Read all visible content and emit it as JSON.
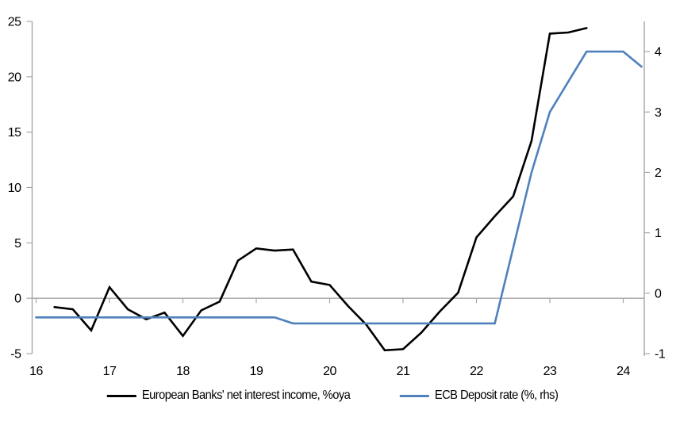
{
  "chart_data": {
    "type": "line",
    "title": "",
    "x_axis": {
      "ticks": [
        16,
        17,
        18,
        19,
        20,
        21,
        22,
        23,
        24
      ],
      "min": 16,
      "max": 24.3
    },
    "left_axis": {
      "label": "",
      "min": -5,
      "max": 25,
      "step": 5,
      "ticks": [
        25,
        20,
        15,
        10,
        5,
        0,
        -5
      ]
    },
    "right_axis": {
      "label": "",
      "min": -1,
      "max": 4.5,
      "step": 1,
      "ticks": [
        4,
        3,
        2,
        1,
        0,
        -1
      ]
    },
    "grid": "zero-line-only",
    "legend_position": "bottom",
    "series": [
      {
        "name": "European Banks' net interest income, %oya",
        "color": "#000000",
        "axis": "left",
        "x": [
          16.25,
          16.5,
          16.75,
          17,
          17.25,
          17.5,
          17.75,
          18,
          18.25,
          18.5,
          18.75,
          19,
          19.25,
          19.5,
          19.75,
          20,
          20.25,
          20.5,
          20.75,
          21,
          21.25,
          21.5,
          21.75,
          22,
          22.25,
          22.5,
          22.75,
          23,
          23.25,
          23.5
        ],
        "values": [
          -0.8,
          -1.0,
          -2.9,
          1.0,
          -1.0,
          -1.9,
          -1.3,
          -3.4,
          -1.1,
          -0.3,
          3.4,
          4.5,
          4.3,
          4.4,
          1.5,
          1.2,
          -0.7,
          -2.4,
          -4.7,
          -4.6,
          -3.1,
          -1.2,
          0.5,
          5.5,
          7.4,
          9.2,
          14.2,
          23.9,
          24.0,
          24.4
        ]
      },
      {
        "name": "ECB Deposit rate (%, rhs)",
        "color": "#4f81bd",
        "axis": "right",
        "x": [
          16,
          16.25,
          16.5,
          16.75,
          17,
          17.25,
          17.5,
          17.75,
          18,
          18.25,
          18.5,
          18.75,
          19,
          19.25,
          19.5,
          19.75,
          20,
          20.25,
          20.5,
          20.75,
          21,
          21.25,
          21.5,
          21.75,
          22,
          22.25,
          22.5,
          22.75,
          23,
          23.25,
          23.5,
          23.75,
          24,
          24.25
        ],
        "values": [
          -0.4,
          -0.4,
          -0.4,
          -0.4,
          -0.4,
          -0.4,
          -0.4,
          -0.4,
          -0.4,
          -0.4,
          -0.4,
          -0.4,
          -0.4,
          -0.4,
          -0.5,
          -0.5,
          -0.5,
          -0.5,
          -0.5,
          -0.5,
          -0.5,
          -0.5,
          -0.5,
          -0.5,
          -0.5,
          -0.5,
          0.75,
          2.0,
          3.0,
          3.5,
          4.0,
          4.0,
          4.0,
          3.75
        ]
      }
    ],
    "colors": {
      "axis_line": "#a6a6a6",
      "zero_gridline": "#a6a6a6",
      "tick_label": "#000000"
    }
  },
  "legend": {
    "items": [
      {
        "label": "European Banks' net interest income, %oya",
        "color": "#000000"
      },
      {
        "label": "ECB Deposit rate (%, rhs)",
        "color": "#4f81bd"
      }
    ]
  }
}
